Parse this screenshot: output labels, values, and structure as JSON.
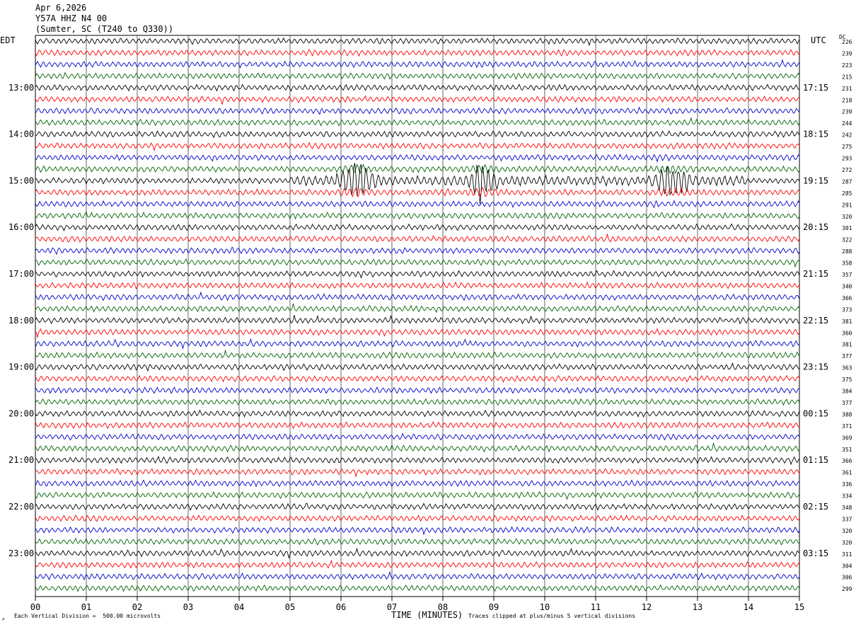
{
  "header": {
    "date": "Apr 6,2026",
    "station": "Y57A HHZ N4 00",
    "location": "(Sumter, SC (T240 to Q330))"
  },
  "labels": {
    "left_tz": "EDT",
    "right_tz": "UTC",
    "dc": "DC",
    "xlabel": "TIME (MINUTES)",
    "scale_note": "Each Vertical Division =  500.00 microvolts",
    "clip_note": "Traces clipped at plus/minus 5 vertical divisions",
    "corner_mark": "↗"
  },
  "colors": {
    "trace_cycle": [
      "#000000",
      "#ff0000",
      "#0000cc",
      "#006400"
    ],
    "grid": "#000000"
  },
  "chart_data": {
    "type": "line",
    "title": "Y57A HHZ N4 00",
    "xlabel": "TIME (MINUTES)",
    "xlim": [
      0,
      15
    ],
    "x_ticks": [
      "00",
      "01",
      "02",
      "03",
      "04",
      "05",
      "06",
      "07",
      "08",
      "09",
      "10",
      "11",
      "12",
      "13",
      "14",
      "15"
    ],
    "left_hour_labels": [
      "13:00",
      "14:00",
      "15:00",
      "16:00",
      "17:00",
      "18:00",
      "19:00",
      "20:00",
      "21:00",
      "22:00",
      "23:00"
    ],
    "right_hour_labels": [
      "17:15",
      "18:15",
      "19:15",
      "20:15",
      "21:15",
      "22:15",
      "23:15",
      "00:15",
      "01:15",
      "02:15",
      "03:15"
    ],
    "hour_label_rows": [
      4,
      8,
      12,
      16,
      20,
      24,
      28,
      32,
      36,
      40,
      44
    ],
    "dc_offsets": [
      226,
      239,
      223,
      215,
      231,
      218,
      239,
      244,
      242,
      275,
      293,
      272,
      287,
      285,
      291,
      320,
      301,
      322,
      288,
      358,
      357,
      340,
      366,
      373,
      381,
      360,
      381,
      377,
      363,
      375,
      384,
      377,
      388,
      371,
      369,
      351,
      366,
      361,
      336,
      334,
      348,
      337,
      320,
      320,
      311,
      304,
      306,
      299
    ],
    "events": [
      {
        "row": 12,
        "start_min": 6.0,
        "end_min": 6.6,
        "amplitude": "clipped"
      },
      {
        "row": 12,
        "start_min": 8.5,
        "end_min": 9.0,
        "amplitude": "clipped"
      },
      {
        "row": 12,
        "start_min": 12.2,
        "end_min": 12.8,
        "amplitude": "clipped"
      }
    ],
    "grid": true
  }
}
